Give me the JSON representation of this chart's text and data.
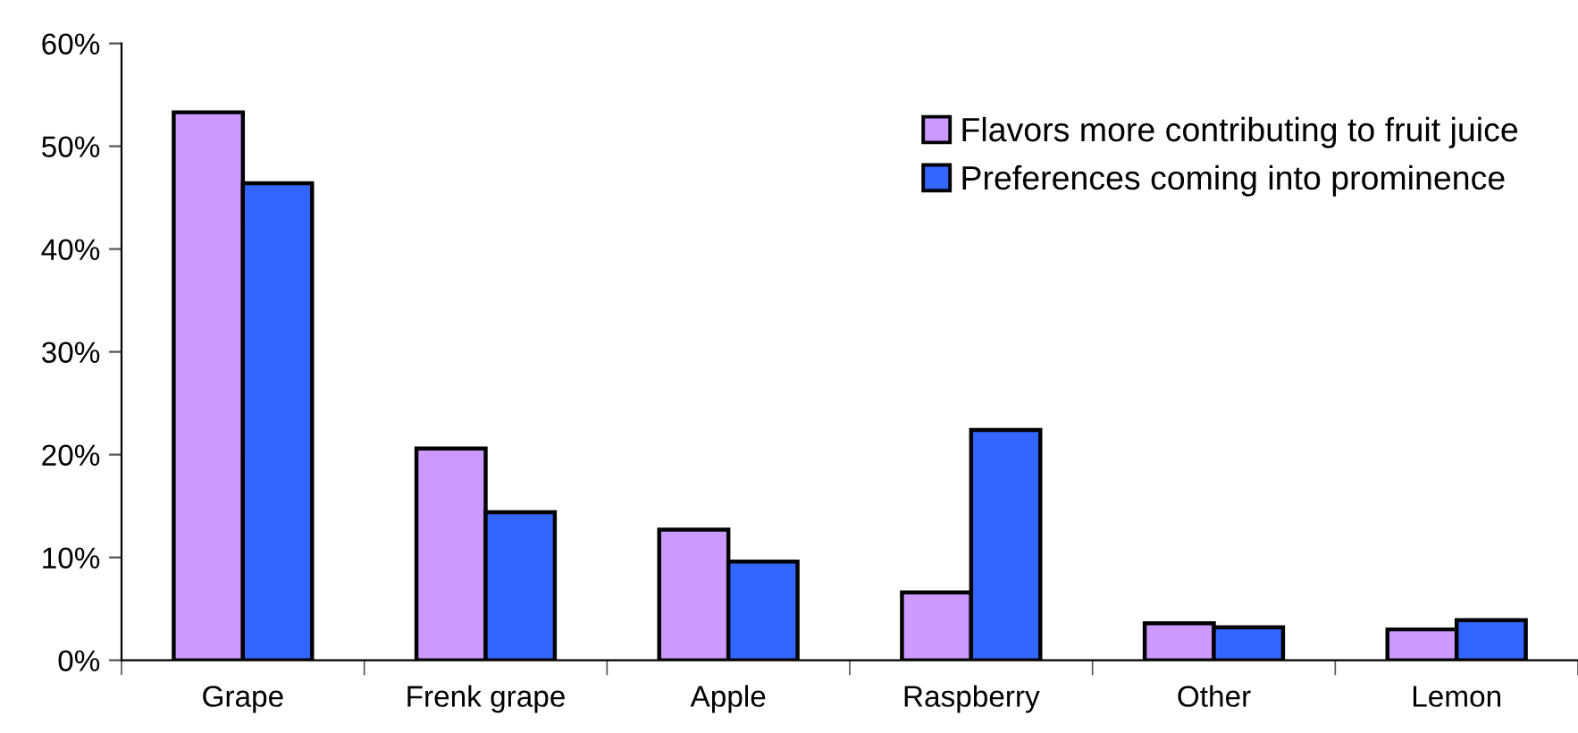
{
  "chart_data": {
    "type": "bar",
    "categories": [
      "Grape",
      "Frenk grape",
      "Apple",
      "Raspberry",
      "Other",
      "Lemon"
    ],
    "series": [
      {
        "name": "Flavors more contributing to fruit juice",
        "color": "#cc99ff",
        "values": [
          53.3,
          20.6,
          12.7,
          6.6,
          3.6,
          3.0
        ]
      },
      {
        "name": "Preferences coming into prominence",
        "color": "#3366ff",
        "values": [
          46.4,
          14.4,
          9.6,
          22.4,
          3.2,
          3.9
        ]
      }
    ],
    "ylim": [
      0,
      60
    ],
    "yticks": [
      {
        "value": 0,
        "label": "0%"
      },
      {
        "value": 10,
        "label": "10%"
      },
      {
        "value": 20,
        "label": "20%"
      },
      {
        "value": 30,
        "label": "30%"
      },
      {
        "value": 40,
        "label": "40%"
      },
      {
        "value": 50,
        "label": "50%"
      },
      {
        "value": 60,
        "label": "60%"
      }
    ],
    "grid": false,
    "legend": "top right"
  }
}
